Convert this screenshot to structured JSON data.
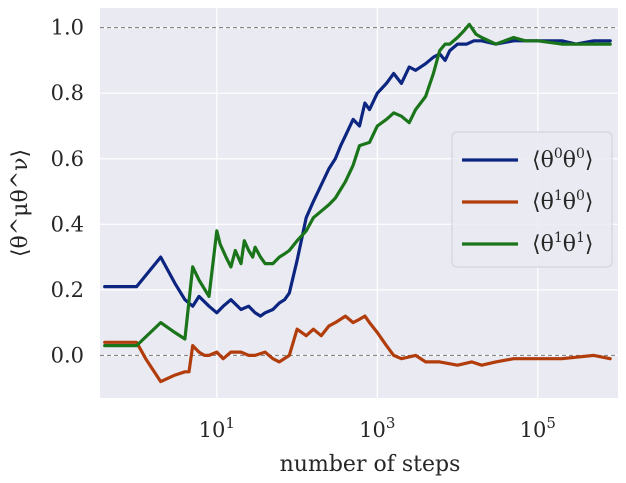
{
  "chart_data": {
    "type": "line",
    "xscale": "log",
    "xlabel": "number of steps",
    "ylabel": "⟨θ^μθ^ν⟩",
    "xlim": [
      0.35,
      1000000
    ],
    "ylim": [
      -0.13,
      1.06
    ],
    "x_ticks": [
      {
        "value": 10,
        "base": "10",
        "exp": "1"
      },
      {
        "value": 1000,
        "base": "10",
        "exp": "3"
      },
      {
        "value": 100000,
        "base": "10",
        "exp": "5"
      }
    ],
    "y_ticks": [
      {
        "value": 0.0,
        "label": "0.0"
      },
      {
        "value": 0.2,
        "label": "0.2"
      },
      {
        "value": 0.4,
        "label": "0.4"
      },
      {
        "value": 0.6,
        "label": "0.6"
      },
      {
        "value": 0.8,
        "label": "0.8"
      },
      {
        "value": 1.0,
        "label": "1.0"
      }
    ],
    "reference_lines": [
      0.0,
      1.0
    ],
    "grid": true,
    "legend_position": "right",
    "series": [
      {
        "name": "⟨θ⁰θ⁰⟩",
        "legend": {
          "open": "⟨θ",
          "sup1": "0",
          "mid": "θ",
          "sup2": "0",
          "close": "⟩"
        },
        "color": "#0c2580",
        "x": [
          0.4,
          1,
          2,
          3,
          4,
          5,
          6,
          8,
          10,
          12,
          15,
          20,
          25,
          30,
          35,
          40,
          50,
          60,
          70,
          80,
          100,
          130,
          160,
          200,
          250,
          300,
          350,
          400,
          500,
          600,
          700,
          800,
          1000,
          1300,
          1600,
          2000,
          2500,
          3000,
          4000,
          5000,
          6000,
          7000,
          8000,
          10000,
          13000,
          16000,
          20000,
          30000,
          50000,
          70000,
          100000,
          200000,
          300000,
          500000,
          800000
        ],
        "y": [
          0.21,
          0.21,
          0.3,
          0.22,
          0.17,
          0.15,
          0.18,
          0.15,
          0.13,
          0.15,
          0.17,
          0.14,
          0.15,
          0.13,
          0.12,
          0.13,
          0.14,
          0.16,
          0.17,
          0.19,
          0.29,
          0.42,
          0.47,
          0.52,
          0.57,
          0.6,
          0.64,
          0.67,
          0.72,
          0.7,
          0.77,
          0.75,
          0.8,
          0.83,
          0.86,
          0.83,
          0.88,
          0.87,
          0.89,
          0.91,
          0.92,
          0.9,
          0.93,
          0.95,
          0.95,
          0.96,
          0.96,
          0.95,
          0.96,
          0.96,
          0.96,
          0.96,
          0.95,
          0.96,
          0.96
        ]
      },
      {
        "name": "⟨θ¹θ⁰⟩",
        "legend": {
          "open": "⟨θ",
          "sup1": "1",
          "mid": "θ",
          "sup2": "0",
          "close": "⟩"
        },
        "color": "#b23d0c",
        "x": [
          0.4,
          1,
          1.3,
          2,
          3,
          4,
          4.5,
          5,
          6,
          7,
          8,
          10,
          12,
          15,
          20,
          25,
          30,
          40,
          50,
          60,
          80,
          100,
          130,
          160,
          200,
          250,
          300,
          400,
          500,
          600,
          700,
          800,
          1000,
          1300,
          1600,
          2000,
          3000,
          4000,
          6000,
          10000,
          15000,
          20000,
          30000,
          50000,
          100000,
          200000,
          500000,
          800000
        ],
        "y": [
          0.04,
          0.04,
          -0.01,
          -0.08,
          -0.06,
          -0.05,
          -0.05,
          0.03,
          0.01,
          0.0,
          0.0,
          0.01,
          -0.01,
          0.01,
          0.01,
          0.0,
          0.0,
          0.01,
          -0.01,
          -0.02,
          0.0,
          0.08,
          0.06,
          0.08,
          0.06,
          0.09,
          0.1,
          0.12,
          0.1,
          0.11,
          0.12,
          0.1,
          0.07,
          0.03,
          0.0,
          -0.01,
          0.0,
          -0.02,
          -0.02,
          -0.03,
          -0.02,
          -0.03,
          -0.02,
          -0.01,
          -0.01,
          -0.01,
          -0.0,
          -0.01
        ]
      },
      {
        "name": "⟨θ¹θ¹⟩",
        "legend": {
          "open": "⟨θ",
          "sup1": "1",
          "mid": "θ",
          "sup2": "1",
          "close": "⟩"
        },
        "color": "#1a7419",
        "x": [
          0.4,
          1,
          2,
          3,
          4,
          5,
          6,
          8,
          10,
          11,
          13,
          15,
          17,
          20,
          22,
          25,
          28,
          30,
          35,
          40,
          50,
          60,
          70,
          80,
          100,
          130,
          160,
          200,
          250,
          300,
          400,
          500,
          600,
          800,
          1000,
          1300,
          1600,
          2000,
          2500,
          3000,
          4000,
          5000,
          6000,
          7000,
          8000,
          10000,
          12000,
          14000,
          17000,
          20000,
          30000,
          50000,
          70000,
          100000,
          200000,
          500000,
          800000
        ],
        "y": [
          0.03,
          0.03,
          0.1,
          0.07,
          0.05,
          0.27,
          0.23,
          0.18,
          0.38,
          0.34,
          0.3,
          0.27,
          0.32,
          0.28,
          0.35,
          0.32,
          0.3,
          0.33,
          0.3,
          0.28,
          0.28,
          0.3,
          0.31,
          0.32,
          0.35,
          0.38,
          0.42,
          0.44,
          0.46,
          0.48,
          0.53,
          0.58,
          0.64,
          0.65,
          0.7,
          0.72,
          0.74,
          0.73,
          0.71,
          0.75,
          0.79,
          0.86,
          0.93,
          0.95,
          0.95,
          0.97,
          0.99,
          1.01,
          0.98,
          0.97,
          0.95,
          0.97,
          0.96,
          0.96,
          0.95,
          0.95,
          0.95
        ]
      }
    ]
  }
}
